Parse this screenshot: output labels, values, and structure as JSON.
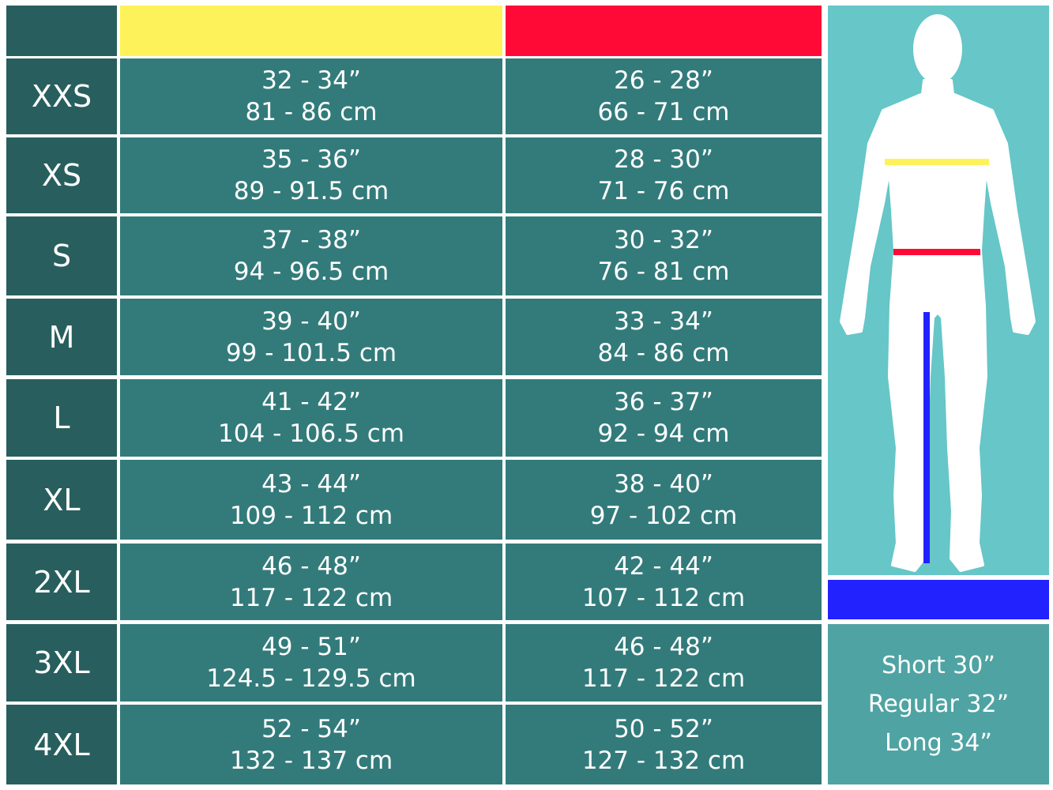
{
  "colors": {
    "size_column": "#285f5e",
    "cell": "#337b7b",
    "chest": "#fef25a",
    "waist": "#ff0a36",
    "inseam": "#2222ff",
    "figure_panel": "#66c6c8",
    "length_panel": "#4fa3a3"
  },
  "rows": [
    {
      "size": "XXS",
      "chest_in": "32 - 34”",
      "chest_cm": "81 - 86 cm",
      "waist_in": "26 - 28”",
      "waist_cm": "66 - 71 cm"
    },
    {
      "size": "XS",
      "chest_in": "35 - 36”",
      "chest_cm": "89 - 91.5 cm",
      "waist_in": "28 - 30”",
      "waist_cm": "71 - 76 cm"
    },
    {
      "size": "S",
      "chest_in": "37 - 38”",
      "chest_cm": "94 - 96.5 cm",
      "waist_in": "30 - 32”",
      "waist_cm": "76 - 81 cm"
    },
    {
      "size": "M",
      "chest_in": "39 - 40”",
      "chest_cm": "99 - 101.5 cm",
      "waist_in": "33 - 34”",
      "waist_cm": "84 - 86 cm"
    },
    {
      "size": "L",
      "chest_in": "41 - 42”",
      "chest_cm": "104 - 106.5 cm",
      "waist_in": "36 - 37”",
      "waist_cm": "92 - 94 cm"
    },
    {
      "size": "XL",
      "chest_in": "43 - 44”",
      "chest_cm": "109 - 112 cm",
      "waist_in": "38 - 40”",
      "waist_cm": "97 - 102 cm"
    },
    {
      "size": "2XL",
      "chest_in": "46 - 48”",
      "chest_cm": "117 - 122 cm",
      "waist_in": "42 - 44”",
      "waist_cm": "107 - 112 cm"
    },
    {
      "size": "3XL",
      "chest_in": "49 - 51”",
      "chest_cm": "124.5 - 129.5 cm",
      "waist_in": "46 - 48”",
      "waist_cm": "117 - 122 cm"
    },
    {
      "size": "4XL",
      "chest_in": "52 - 54”",
      "chest_cm": "132 - 137 cm",
      "waist_in": "50 - 52”",
      "waist_cm": "127 - 132 cm"
    }
  ],
  "lengths": [
    "Short 30”",
    "Regular 32”",
    "Long 34”"
  ]
}
